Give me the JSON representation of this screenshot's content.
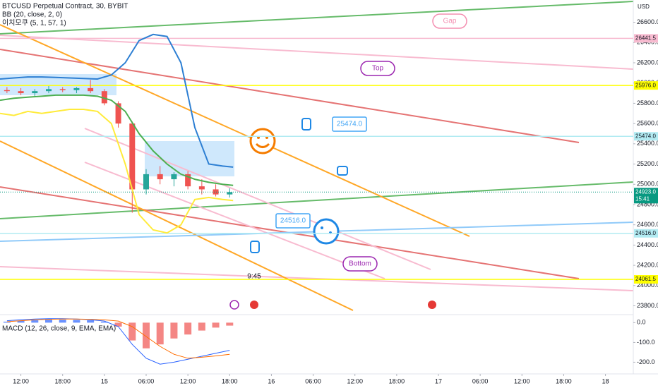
{
  "chart_data": [
    {
      "type": "candlestick",
      "title": "BTCUSD Perpetual Contract, 30, BYBIT",
      "indicators": [
        "BB (20, close, 2, 0)",
        "이치모쿠 (5, 1, 57, 1)"
      ],
      "unit": "USD",
      "up_color": "#26a69a",
      "down_color": "#ef5350",
      "x": [
        -2,
        0,
        2,
        4,
        6,
        8,
        10,
        12,
        14,
        16,
        18,
        20,
        22,
        24,
        26,
        28,
        30
      ],
      "open": [
        25930,
        25920,
        25900,
        25920,
        25940,
        25930,
        25950,
        25920,
        25800,
        25600,
        24950,
        25100,
        25050,
        25100,
        24980,
        24950,
        24900
      ],
      "high": [
        25960,
        25950,
        25940,
        25970,
        25960,
        25960,
        26030,
        25940,
        25820,
        25620,
        25150,
        25180,
        25120,
        25130,
        25050,
        25000,
        24960
      ],
      "low": [
        25900,
        25880,
        25860,
        25900,
        25910,
        25900,
        25900,
        25780,
        25560,
        24720,
        24900,
        25000,
        24980,
        24950,
        24900,
        24880,
        24870
      ],
      "close": [
        25920,
        25900,
        25920,
        25940,
        25930,
        25950,
        25920,
        25800,
        25600,
        24950,
        25100,
        25050,
        25100,
        24980,
        24950,
        24900,
        24923
      ],
      "series": [
        {
          "color": "#2d7fd3",
          "x": [
            -3,
            -1,
            1,
            3,
            5,
            7,
            9,
            11,
            13,
            15,
            17,
            19,
            21,
            23,
            25,
            27,
            29,
            30.5
          ],
          "values": [
            26040,
            26050,
            26060,
            26060,
            26055,
            26050,
            26045,
            26040,
            26080,
            26200,
            26420,
            26480,
            26460,
            26200,
            25560,
            25200,
            25180,
            25170
          ]
        },
        {
          "color": "#4caf50",
          "x": [
            -3,
            -1,
            1,
            3,
            5,
            7,
            9,
            11,
            13,
            15,
            17,
            19,
            21,
            23,
            25,
            27,
            29,
            30.5
          ],
          "values": [
            25830,
            25850,
            25860,
            25870,
            25880,
            25880,
            25880,
            25870,
            25830,
            25720,
            25500,
            25330,
            25200,
            25100,
            25050,
            25020,
            25000,
            24990
          ]
        },
        {
          "color": "#ffeb3b",
          "x": [
            -3,
            -1,
            1,
            3,
            5,
            7,
            9,
            11,
            13,
            15,
            17,
            19,
            21,
            23,
            25,
            27,
            29,
            30.5
          ],
          "values": [
            25700,
            25680,
            25720,
            25700,
            25720,
            25740,
            25740,
            25720,
            25600,
            25200,
            24700,
            24550,
            24520,
            24600,
            24850,
            24870,
            24850,
            24840
          ]
        }
      ],
      "levels": [
        {
          "value": 26441.5,
          "label": "26441.5",
          "color": "#f8bbd0"
        },
        {
          "value": 25976,
          "label": "25976.0",
          "color": "#ffff00"
        },
        {
          "value": 25474,
          "label": "25474.0",
          "color": "#b2ebf2"
        },
        {
          "value": 24516,
          "label": "24516.0",
          "color": "#b2ebf2"
        },
        {
          "value": 24061.5,
          "label": "24061.5",
          "color": "#ffff00"
        }
      ],
      "last": {
        "value": 24923,
        "label": "24923.0",
        "countdown": "15:41",
        "color": "#089981"
      },
      "annotations": [
        "Gap",
        "Top",
        "Bottom",
        "25474.0",
        "24516.0",
        "9:45"
      ],
      "xlim": [
        -3,
        88
      ],
      "xticks": [
        {
          "value": 0,
          "label": "12:00"
        },
        {
          "value": 6,
          "label": "18:00"
        },
        {
          "value": 12,
          "label": "15"
        },
        {
          "value": 18,
          "label": "06:00"
        },
        {
          "value": 24,
          "label": "12:00"
        },
        {
          "value": 30,
          "label": "18:00"
        },
        {
          "value": 36,
          "label": "16"
        },
        {
          "value": 42,
          "label": "06:00"
        },
        {
          "value": 48,
          "label": "12:00"
        },
        {
          "value": 54,
          "label": "18:00"
        },
        {
          "value": 60,
          "label": "17"
        },
        {
          "value": 66,
          "label": "06:00"
        },
        {
          "value": 72,
          "label": "12:00"
        },
        {
          "value": 78,
          "label": "18:00"
        },
        {
          "value": 84,
          "label": "18"
        }
      ],
      "ylim": [
        23720,
        26820
      ],
      "yticks": [
        {
          "value": 23800,
          "label": "23800.0"
        },
        {
          "value": 24000,
          "label": "24000.0"
        },
        {
          "value": 24200,
          "label": "24200.0"
        },
        {
          "value": 24400,
          "label": "24400.0"
        },
        {
          "value": 24600,
          "label": "24600.0"
        },
        {
          "value": 24800,
          "label": "24800.0"
        },
        {
          "value": 25000,
          "label": "25000.0"
        },
        {
          "value": 25200,
          "label": "25200.0"
        },
        {
          "value": 25400,
          "label": "25400.0"
        },
        {
          "value": 25600,
          "label": "25600.0"
        },
        {
          "value": 25800,
          "label": "25800.0"
        },
        {
          "value": 26000,
          "label": "26000.0"
        },
        {
          "value": 26200,
          "label": "26200.0"
        },
        {
          "value": 26400,
          "label": "26400.0"
        },
        {
          "value": 26600,
          "label": "26600.0"
        }
      ]
    },
    {
      "type": "macd",
      "title": "MACD (12, 26, close, 9, EMA, EMA)",
      "pos_color": "#2962ff",
      "neg_color": "#ef5350",
      "x": [
        -2,
        0,
        2,
        4,
        6,
        8,
        10,
        12,
        14,
        16,
        18,
        20,
        22,
        24,
        26,
        28,
        30
      ],
      "values": [
        5,
        10,
        12,
        15,
        15,
        14,
        12,
        5,
        -20,
        -90,
        -130,
        -110,
        -80,
        -60,
        -40,
        -25,
        -15
      ],
      "series": [
        {
          "color": "#2962ff",
          "values": [
            10,
            15,
            18,
            20,
            20,
            18,
            15,
            8,
            -20,
            -110,
            -180,
            -210,
            -200,
            -185,
            -170,
            -155,
            -140
          ]
        },
        {
          "color": "#ff6d00",
          "values": [
            5,
            10,
            14,
            17,
            18,
            18,
            17,
            14,
            8,
            -20,
            -70,
            -120,
            -160,
            -180,
            -175,
            -168,
            -160
          ]
        }
      ],
      "ylim": [
        -252,
        37
      ],
      "yticks": [
        {
          "value": 0,
          "label": "0.0"
        },
        {
          "value": -100,
          "label": "-100.0"
        },
        {
          "value": -200,
          "label": "-200.0"
        }
      ]
    }
  ]
}
